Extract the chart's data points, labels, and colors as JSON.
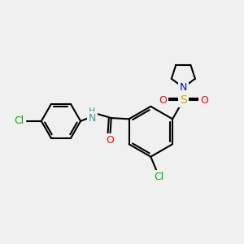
{
  "bg_color": "#f0f0f0",
  "bond_color": "#000000",
  "bond_width": 1.5,
  "atom_colors": {
    "N": "#0000cc",
    "O": "#ff0000",
    "S": "#ccaa00",
    "Cl": "#00aa00",
    "NH": "#4a9a9a"
  },
  "font_size": 9,
  "figsize": [
    3.0,
    3.0
  ],
  "dpi": 100,
  "xlim": [
    0,
    10
  ],
  "ylim": [
    0,
    10
  ]
}
